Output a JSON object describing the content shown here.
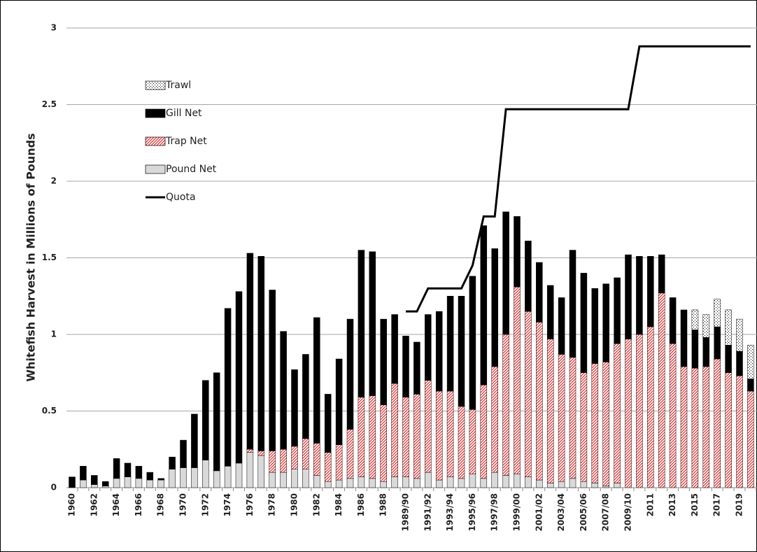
{
  "chart_data": {
    "type": "bar",
    "stacked": true,
    "ylabel": "Whitefish Harvest in Millions of Pounds",
    "categories": [
      "1960",
      null,
      "1962",
      null,
      "1964",
      null,
      "1966",
      null,
      "1968",
      null,
      "1970",
      null,
      "1972",
      null,
      "1974",
      null,
      "1976",
      null,
      "1978",
      null,
      "1980",
      null,
      "1982",
      null,
      "1984",
      null,
      "1986",
      null,
      "1988",
      null,
      "1989/90",
      null,
      "1991/92",
      null,
      "1993/94",
      null,
      "1995/96",
      null,
      "1997/98",
      null,
      "1999/00",
      null,
      "2001/02",
      null,
      "2003/04",
      null,
      "2005/06",
      null,
      "2007/08",
      null,
      "2009/10",
      null,
      "2011",
      null,
      "2013",
      null,
      "2015",
      null,
      "2017",
      null,
      "2019",
      null
    ],
    "series": [
      {
        "name": "Pound Net",
        "color": "#d9d9d9",
        "values": [
          0,
          0.05,
          0.02,
          0.01,
          0.06,
          0.07,
          0.06,
          0.05,
          0.05,
          0.12,
          0.13,
          0.13,
          0.18,
          0.11,
          0.14,
          0.16,
          0.23,
          0.21,
          0.1,
          0.1,
          0.12,
          0.12,
          0.08,
          0.04,
          0.05,
          0.06,
          0.07,
          0.06,
          0.04,
          0.07,
          0.07,
          0.06,
          0.1,
          0.05,
          0.07,
          0.06,
          0.09,
          0.06,
          0.1,
          0.08,
          0.09,
          0.07,
          0.05,
          0.03,
          0.04,
          0.06,
          0.04,
          0.03,
          0.01,
          0.03,
          0,
          0,
          0,
          0,
          0,
          0,
          0,
          0,
          0,
          0,
          0,
          0
        ]
      },
      {
        "name": "Trap Net",
        "color": "#e03030",
        "values": [
          0,
          0,
          0,
          0,
          0,
          0,
          0,
          0,
          0,
          0,
          0,
          0,
          0,
          0,
          0,
          0,
          0.02,
          0.03,
          0.14,
          0.15,
          0.15,
          0.2,
          0.21,
          0.19,
          0.23,
          0.32,
          0.52,
          0.54,
          0.5,
          0.61,
          0.52,
          0.55,
          0.6,
          0.58,
          0.56,
          0.47,
          0.42,
          0.61,
          0.69,
          0.92,
          1.22,
          1.08,
          1.03,
          0.94,
          0.83,
          0.79,
          0.71,
          0.78,
          0.81,
          0.91,
          0.97,
          1.0,
          1.05,
          1.27,
          0.94,
          0.79,
          0.78,
          0.79,
          0.84,
          0.75,
          0.73,
          0.63
        ]
      },
      {
        "name": "Gill Net",
        "color": "#000000",
        "values": [
          0.07,
          0.09,
          0.06,
          0.03,
          0.13,
          0.09,
          0.08,
          0.05,
          0.01,
          0.08,
          0.18,
          0.35,
          0.52,
          0.64,
          1.03,
          1.12,
          1.28,
          1.27,
          1.05,
          0.77,
          0.5,
          0.55,
          0.82,
          0.38,
          0.56,
          0.72,
          0.96,
          0.94,
          0.56,
          0.45,
          0.4,
          0.34,
          0.43,
          0.52,
          0.62,
          0.72,
          0.87,
          1.04,
          0.77,
          0.8,
          0.46,
          0.46,
          0.39,
          0.35,
          0.37,
          0.7,
          0.65,
          0.49,
          0.51,
          0.43,
          0.55,
          0.51,
          0.46,
          0.25,
          0.3,
          0.37,
          0.25,
          0.19,
          0.21,
          0.18,
          0.16,
          0.08
        ]
      },
      {
        "name": "Trawl",
        "color": "#000000",
        "values": [
          0,
          0,
          0,
          0,
          0,
          0,
          0,
          0,
          0,
          0,
          0,
          0,
          0,
          0,
          0,
          0,
          0,
          0,
          0,
          0,
          0,
          0,
          0,
          0,
          0,
          0,
          0,
          0,
          0,
          0,
          0,
          0,
          0,
          0,
          0,
          0,
          0,
          0,
          0,
          0,
          0,
          0,
          0,
          0,
          0,
          0,
          0,
          0,
          0,
          0,
          0,
          0,
          0,
          0,
          0,
          0,
          0.13,
          0.15,
          0.18,
          0.23,
          0.21,
          0.22
        ]
      },
      {
        "name": "Quota",
        "type": "line",
        "color": "#000000",
        "values": [
          null,
          null,
          null,
          null,
          null,
          null,
          null,
          null,
          null,
          null,
          null,
          null,
          null,
          null,
          null,
          null,
          null,
          null,
          null,
          null,
          null,
          null,
          null,
          null,
          null,
          null,
          null,
          null,
          null,
          null,
          1.15,
          1.15,
          1.3,
          1.3,
          1.3,
          1.3,
          1.45,
          1.77,
          1.77,
          2.47,
          2.47,
          2.47,
          2.47,
          2.47,
          2.47,
          2.47,
          2.47,
          2.47,
          2.47,
          2.47,
          2.47,
          2.88,
          2.88,
          2.88,
          2.88,
          2.88,
          2.88,
          2.88,
          2.88,
          2.88,
          2.88,
          2.88
        ]
      }
    ],
    "ylim": [
      0,
      3
    ],
    "yticks": [
      0,
      0.5,
      1,
      1.5,
      2,
      2.5,
      3
    ],
    "grid": true
  }
}
